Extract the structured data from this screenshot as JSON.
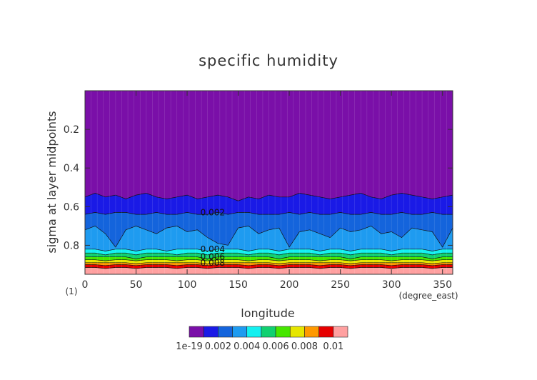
{
  "chart_data": {
    "type": "heatmap",
    "title": "specific humidity",
    "xlabel": "longitude",
    "ylabel": "sigma at layer midpoints",
    "x_unit": "(degree_east)",
    "y_unit": "(1)",
    "xlim": [
      0,
      360
    ],
    "ylim": [
      0,
      0.95
    ],
    "y_inverted": true,
    "x_ticks": [
      "0",
      "50",
      "100",
      "150",
      "200",
      "250",
      "300",
      "350"
    ],
    "y_ticks": [
      "0.2",
      "0.4",
      "0.6",
      "0.8"
    ],
    "colorbar": {
      "levels": [
        0,
        0.001,
        0.002,
        0.003,
        0.004,
        0.005,
        0.006,
        0.007,
        0.008,
        0.009,
        0.01
      ],
      "tick_labels": [
        "1e-19",
        "0.002",
        "0.004",
        "0.006",
        "0.008",
        "0.01"
      ],
      "colors": [
        "#7a0fa8",
        "#1a1ae6",
        "#1464dc",
        "#1e9bf0",
        "#14f0f0",
        "#10d070",
        "#46e600",
        "#e6e600",
        "#ff9900",
        "#e60000",
        "#ffa0a0"
      ]
    },
    "contour_labels": [
      "0.002",
      "0.004",
      "0.006",
      "0.008"
    ],
    "contours": [
      {
        "level": 0.001,
        "sigma": [
          0.55,
          0.53,
          0.55,
          0.54,
          0.56,
          0.54,
          0.53,
          0.55,
          0.56,
          0.55,
          0.54,
          0.56,
          0.55,
          0.54,
          0.55,
          0.57,
          0.55,
          0.56,
          0.54,
          0.55,
          0.55,
          0.53,
          0.54,
          0.55,
          0.56,
          0.55,
          0.54,
          0.53,
          0.55,
          0.56,
          0.54,
          0.53,
          0.54,
          0.55,
          0.56,
          0.55,
          0.54
        ]
      },
      {
        "level": 0.002,
        "sigma": [
          0.64,
          0.63,
          0.64,
          0.63,
          0.63,
          0.64,
          0.64,
          0.63,
          0.64,
          0.64,
          0.63,
          0.64,
          0.64,
          0.63,
          0.64,
          0.63,
          0.63,
          0.64,
          0.64,
          0.64,
          0.63,
          0.64,
          0.63,
          0.64,
          0.64,
          0.63,
          0.64,
          0.64,
          0.63,
          0.64,
          0.64,
          0.63,
          0.64,
          0.64,
          0.63,
          0.64,
          0.64
        ]
      },
      {
        "level": 0.003,
        "sigma": [
          0.72,
          0.7,
          0.74,
          0.81,
          0.72,
          0.7,
          0.72,
          0.74,
          0.71,
          0.7,
          0.73,
          0.72,
          0.76,
          0.79,
          0.8,
          0.71,
          0.7,
          0.74,
          0.72,
          0.71,
          0.81,
          0.73,
          0.72,
          0.74,
          0.76,
          0.71,
          0.73,
          0.72,
          0.7,
          0.74,
          0.73,
          0.76,
          0.71,
          0.72,
          0.73,
          0.81,
          0.71
        ]
      },
      {
        "level": 0.004,
        "sigma": [
          0.82,
          0.82,
          0.83,
          0.82,
          0.82,
          0.83,
          0.82,
          0.82,
          0.83,
          0.82,
          0.82,
          0.82,
          0.83,
          0.82,
          0.82,
          0.82,
          0.83,
          0.82,
          0.82,
          0.83,
          0.82,
          0.82,
          0.82,
          0.83,
          0.82,
          0.82,
          0.83,
          0.82,
          0.82,
          0.82,
          0.83,
          0.82,
          0.82,
          0.82,
          0.83,
          0.82,
          0.82
        ]
      },
      {
        "level": 0.005,
        "sigma": [
          0.84,
          0.84,
          0.85,
          0.84,
          0.84,
          0.85,
          0.84,
          0.84,
          0.84,
          0.85,
          0.84,
          0.84,
          0.85,
          0.84,
          0.84,
          0.84,
          0.85,
          0.84,
          0.84,
          0.85,
          0.84,
          0.84,
          0.84,
          0.85,
          0.84,
          0.84,
          0.85,
          0.84,
          0.84,
          0.84,
          0.85,
          0.84,
          0.84,
          0.84,
          0.85,
          0.84,
          0.84
        ]
      },
      {
        "level": 0.006,
        "sigma": [
          0.86,
          0.86,
          0.86,
          0.86,
          0.86,
          0.87,
          0.86,
          0.86,
          0.86,
          0.86,
          0.86,
          0.86,
          0.87,
          0.86,
          0.86,
          0.86,
          0.86,
          0.86,
          0.86,
          0.87,
          0.86,
          0.86,
          0.86,
          0.86,
          0.86,
          0.86,
          0.87,
          0.86,
          0.86,
          0.86,
          0.86,
          0.86,
          0.86,
          0.86,
          0.87,
          0.86,
          0.86
        ]
      },
      {
        "level": 0.007,
        "sigma": [
          0.875,
          0.875,
          0.88,
          0.875,
          0.875,
          0.88,
          0.875,
          0.875,
          0.875,
          0.88,
          0.875,
          0.875,
          0.88,
          0.875,
          0.875,
          0.875,
          0.88,
          0.875,
          0.875,
          0.88,
          0.875,
          0.875,
          0.875,
          0.88,
          0.875,
          0.875,
          0.88,
          0.875,
          0.875,
          0.875,
          0.88,
          0.875,
          0.875,
          0.875,
          0.88,
          0.875,
          0.875
        ]
      },
      {
        "level": 0.008,
        "sigma": [
          0.89,
          0.89,
          0.89,
          0.89,
          0.89,
          0.895,
          0.89,
          0.89,
          0.89,
          0.89,
          0.89,
          0.89,
          0.895,
          0.89,
          0.89,
          0.89,
          0.89,
          0.89,
          0.89,
          0.895,
          0.89,
          0.89,
          0.89,
          0.89,
          0.89,
          0.89,
          0.895,
          0.89,
          0.89,
          0.89,
          0.89,
          0.89,
          0.89,
          0.89,
          0.895,
          0.89,
          0.89
        ]
      },
      {
        "level": 0.009,
        "sigma": [
          0.9,
          0.9,
          0.905,
          0.9,
          0.9,
          0.905,
          0.9,
          0.9,
          0.9,
          0.905,
          0.9,
          0.9,
          0.905,
          0.9,
          0.9,
          0.9,
          0.905,
          0.9,
          0.9,
          0.905,
          0.9,
          0.9,
          0.9,
          0.905,
          0.9,
          0.9,
          0.905,
          0.9,
          0.9,
          0.9,
          0.905,
          0.9,
          0.9,
          0.9,
          0.905,
          0.9,
          0.9
        ]
      },
      {
        "level": 0.01,
        "sigma": [
          0.915,
          0.915,
          0.92,
          0.915,
          0.915,
          0.92,
          0.915,
          0.915,
          0.915,
          0.92,
          0.915,
          0.915,
          0.92,
          0.915,
          0.915,
          0.915,
          0.92,
          0.915,
          0.915,
          0.92,
          0.915,
          0.915,
          0.915,
          0.92,
          0.915,
          0.915,
          0.92,
          0.915,
          0.915,
          0.915,
          0.92,
          0.915,
          0.915,
          0.915,
          0.92,
          0.915,
          0.915
        ]
      }
    ]
  }
}
